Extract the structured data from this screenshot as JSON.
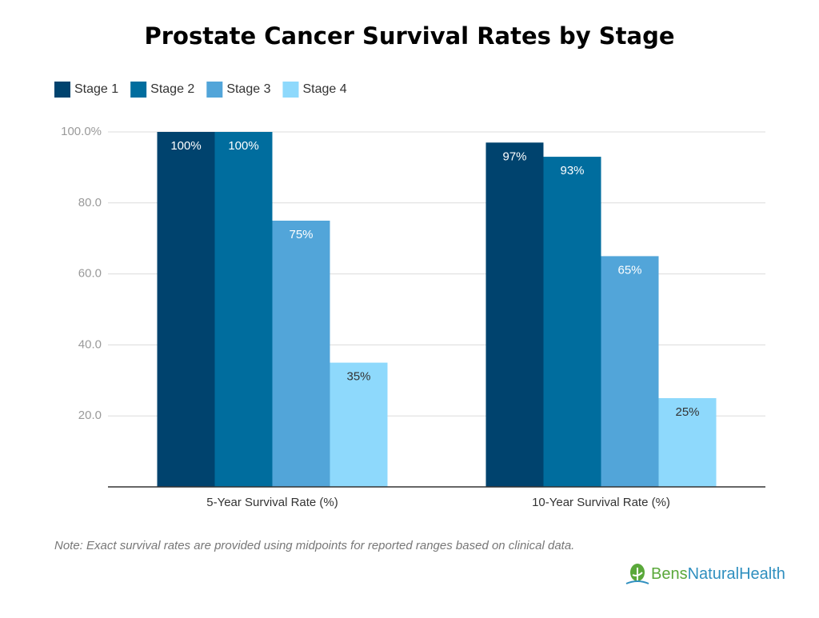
{
  "chart_data": {
    "type": "bar",
    "title": "Prostate Cancer Survival Rates by Stage",
    "categories": [
      "5-Year Survival Rate (%)",
      "10-Year Survival Rate (%)"
    ],
    "series": [
      {
        "name": "Stage 1",
        "color": "#00436e",
        "values": [
          100,
          97
        ],
        "value_labels": [
          "100%",
          "97%"
        ]
      },
      {
        "name": "Stage 2",
        "color": "#006d9e",
        "values": [
          100,
          93
        ],
        "value_labels": [
          "100%",
          "93%"
        ]
      },
      {
        "name": "Stage 3",
        "color": "#52a5d9",
        "values": [
          75,
          65
        ],
        "value_labels": [
          "75%",
          "65%"
        ]
      },
      {
        "name": "Stage 4",
        "color": "#8ed9fc",
        "values": [
          35,
          25
        ],
        "value_labels": [
          "35%",
          "25%"
        ]
      }
    ],
    "ylim": [
      0,
      100
    ],
    "yticks": [
      {
        "value": 20,
        "label": "20.0"
      },
      {
        "value": 40,
        "label": "40.0"
      },
      {
        "value": 60,
        "label": "60.0"
      },
      {
        "value": 80,
        "label": "80.0"
      },
      {
        "value": 100,
        "label": "100.0%"
      }
    ],
    "grid": true,
    "legend": "top-left",
    "note": "Note: Exact survival rates are provided using midpoints for reported ranges based on clinical data."
  },
  "brand": {
    "part1": "Bens",
    "part2": "NaturalHealth"
  }
}
